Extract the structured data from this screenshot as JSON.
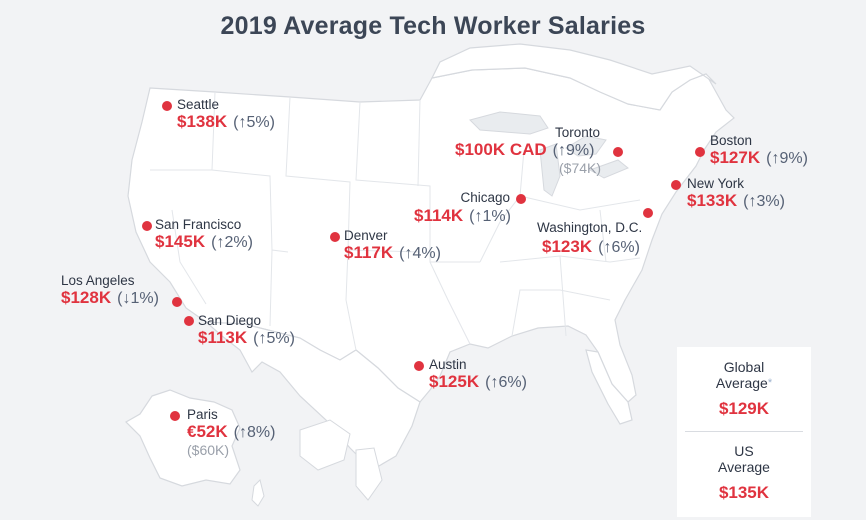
{
  "title": "2019 Average Tech Worker Salaries",
  "colors": {
    "accent": "#e0333f",
    "text": "#2e3645",
    "muted": "#9aa0aa",
    "land": "#ffffff",
    "background": "#f2f3f5"
  },
  "cities": [
    {
      "name": "Seattle",
      "salary": "$138K",
      "change": "(↑5%)"
    },
    {
      "name": "San Francisco",
      "salary": "$145K",
      "change": "(↑2%)"
    },
    {
      "name": "Los Angeles",
      "salary": "$128K",
      "change": "(↓1%)"
    },
    {
      "name": "San Diego",
      "salary": "$113K",
      "change": "(↑5%)"
    },
    {
      "name": "Denver",
      "salary": "$117K",
      "change": "(↑4%)"
    },
    {
      "name": "Austin",
      "salary": "$125K",
      "change": "(↑6%)"
    },
    {
      "name": "Chicago",
      "salary": "$114K",
      "change": "(↑1%)"
    },
    {
      "name": "Toronto",
      "salary": "$100K CAD",
      "change": "(↑9%)",
      "local": "($74K)"
    },
    {
      "name": "Washington, D.C.",
      "salary": "$123K",
      "change": "(↑6%)"
    },
    {
      "name": "New York",
      "salary": "$133K",
      "change": "(↑3%)"
    },
    {
      "name": "Boston",
      "salary": "$127K",
      "change": "(↑9%)"
    },
    {
      "name": "Paris",
      "salary": "€52K",
      "change": "(↑8%)",
      "local": "($60K)"
    }
  ],
  "averages": {
    "global": {
      "label_line1": "Global",
      "label_line2": "Average",
      "marker": "*",
      "value": "$129K"
    },
    "us": {
      "label_line1": "US",
      "label_line2": "Average",
      "value": "$135K"
    }
  }
}
